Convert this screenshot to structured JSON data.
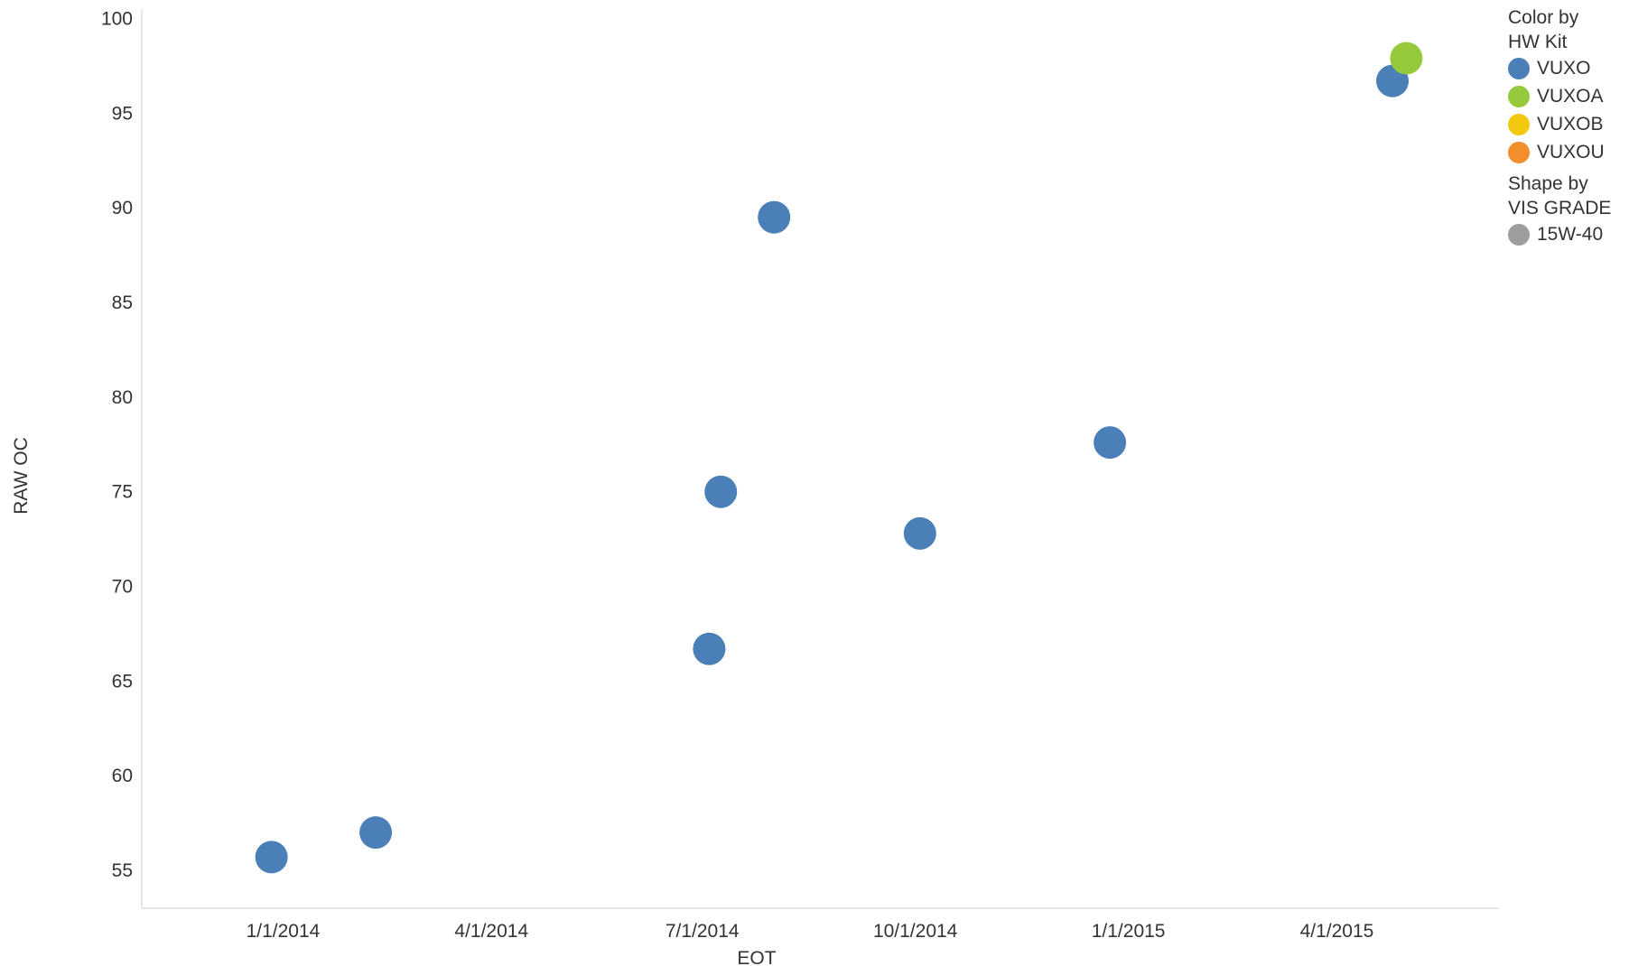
{
  "chart_data": {
    "type": "scatter",
    "xlabel": "EOT",
    "ylabel": "RAW OC",
    "x_axis_type": "date",
    "xlim": [
      "2013-11-01",
      "2015-06-10"
    ],
    "x_ticks": [
      {
        "value": "2014-01-01",
        "label": "1/1/2014"
      },
      {
        "value": "2014-04-01",
        "label": "4/1/2014"
      },
      {
        "value": "2014-07-01",
        "label": "7/1/2014"
      },
      {
        "value": "2014-10-01",
        "label": "10/1/2014"
      },
      {
        "value": "2015-01-01",
        "label": "1/1/2015"
      },
      {
        "value": "2015-04-01",
        "label": "4/1/2015"
      }
    ],
    "ylim": [
      53,
      100.5
    ],
    "y_ticks": [
      55,
      60,
      65,
      70,
      75,
      80,
      85,
      90,
      95,
      100
    ],
    "grid": false,
    "legend_position": "top-right",
    "series": [
      {
        "name": "VUXO",
        "color": "#4a7fb8",
        "points": [
          {
            "x": "2013-12-27",
            "y": 55.7
          },
          {
            "x": "2014-02-10",
            "y": 57.0
          },
          {
            "x": "2014-07-04",
            "y": 66.7
          },
          {
            "x": "2014-07-09",
            "y": 75.0
          },
          {
            "x": "2014-08-01",
            "y": 89.5
          },
          {
            "x": "2014-10-03",
            "y": 72.8
          },
          {
            "x": "2014-12-24",
            "y": 77.6
          },
          {
            "x": "2015-04-25",
            "y": 96.7
          }
        ]
      },
      {
        "name": "VUXOA",
        "color": "#97c93c",
        "points": [
          {
            "x": "2015-05-01",
            "y": 97.9
          }
        ]
      },
      {
        "name": "VUXOB",
        "color": "#f2c811",
        "points": []
      },
      {
        "name": "VUXOU",
        "color": "#f28e2b",
        "points": []
      }
    ]
  },
  "legend": {
    "color_title": "Color by\nHW Kit",
    "color_items": [
      {
        "label": "VUXO",
        "color": "#4a7fb8"
      },
      {
        "label": "VUXOA",
        "color": "#97c93c"
      },
      {
        "label": "VUXOB",
        "color": "#f2c811"
      },
      {
        "label": "VUXOU",
        "color": "#f28e2b"
      }
    ],
    "shape_title": "Shape by\nVIS GRADE",
    "shape_items": [
      {
        "label": "15W-40",
        "color": "#9e9e9e"
      }
    ]
  }
}
